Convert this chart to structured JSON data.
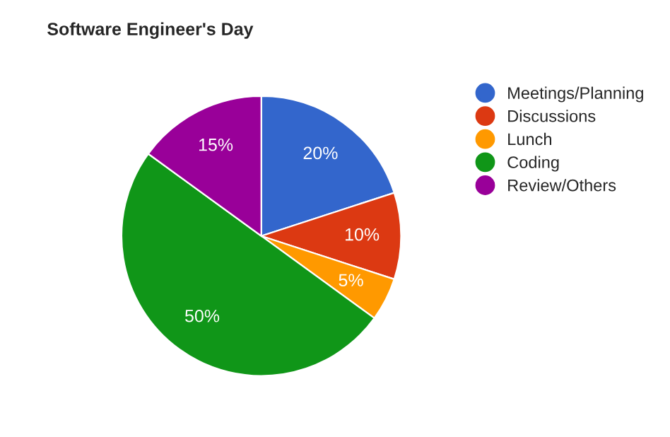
{
  "chart_data": {
    "type": "pie",
    "title": "Software Engineer's Day",
    "categories": [
      "Meetings/Planning",
      "Discussions",
      "Lunch",
      "Coding",
      "Review/Others"
    ],
    "values": [
      20,
      10,
      5,
      50,
      15
    ],
    "value_labels": [
      "20%",
      "10%",
      "5%",
      "50%",
      "15%"
    ],
    "colors": [
      "#3366cc",
      "#dc3912",
      "#ff9900",
      "#109618",
      "#990099"
    ],
    "legend": "right"
  }
}
